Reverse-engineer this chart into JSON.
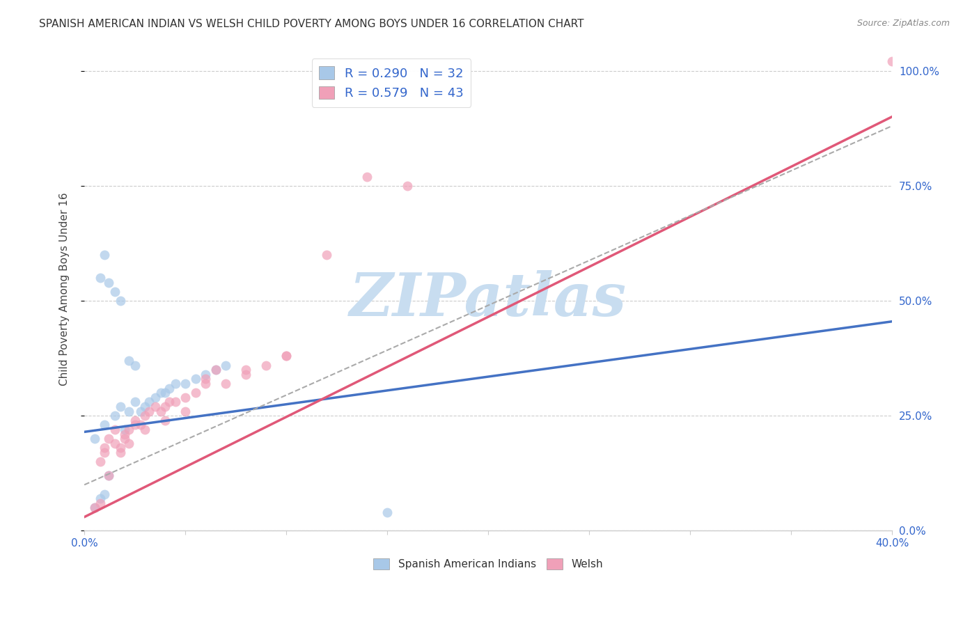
{
  "title": "SPANISH AMERICAN INDIAN VS WELSH CHILD POVERTY AMONG BOYS UNDER 16 CORRELATION CHART",
  "source": "Source: ZipAtlas.com",
  "ylabel": "Child Poverty Among Boys Under 16",
  "legend_entries": [
    {
      "label": "R = 0.290   N = 32",
      "color": "#aec6e8"
    },
    {
      "label": "R = 0.579   N = 43",
      "color": "#f4b8c8"
    }
  ],
  "legend_bottom": [
    "Spanish American Indians",
    "Welsh"
  ],
  "blue_scatter_x": [
    0.005,
    0.01,
    0.015,
    0.018,
    0.02,
    0.022,
    0.025,
    0.028,
    0.03,
    0.032,
    0.035,
    0.038,
    0.04,
    0.042,
    0.045,
    0.05,
    0.055,
    0.06,
    0.065,
    0.07,
    0.008,
    0.012,
    0.015,
    0.018,
    0.022,
    0.025,
    0.005,
    0.008,
    0.01,
    0.012,
    0.15,
    0.01
  ],
  "blue_scatter_y": [
    0.2,
    0.23,
    0.25,
    0.27,
    0.22,
    0.26,
    0.28,
    0.26,
    0.27,
    0.28,
    0.29,
    0.3,
    0.3,
    0.31,
    0.32,
    0.32,
    0.33,
    0.34,
    0.35,
    0.36,
    0.55,
    0.54,
    0.52,
    0.5,
    0.37,
    0.36,
    0.05,
    0.07,
    0.08,
    0.12,
    0.04,
    0.6
  ],
  "pink_scatter_x": [
    0.008,
    0.01,
    0.012,
    0.015,
    0.018,
    0.02,
    0.022,
    0.025,
    0.028,
    0.03,
    0.032,
    0.035,
    0.038,
    0.04,
    0.042,
    0.045,
    0.05,
    0.055,
    0.06,
    0.065,
    0.07,
    0.08,
    0.09,
    0.1,
    0.12,
    0.14,
    0.01,
    0.015,
    0.02,
    0.025,
    0.005,
    0.008,
    0.012,
    0.018,
    0.022,
    0.03,
    0.04,
    0.05,
    0.06,
    0.08,
    0.1,
    0.16,
    0.4
  ],
  "pink_scatter_y": [
    0.15,
    0.18,
    0.2,
    0.22,
    0.18,
    0.2,
    0.22,
    0.24,
    0.23,
    0.25,
    0.26,
    0.27,
    0.26,
    0.27,
    0.28,
    0.28,
    0.29,
    0.3,
    0.33,
    0.35,
    0.32,
    0.34,
    0.36,
    0.38,
    0.6,
    0.77,
    0.17,
    0.19,
    0.21,
    0.23,
    0.05,
    0.06,
    0.12,
    0.17,
    0.19,
    0.22,
    0.24,
    0.26,
    0.32,
    0.35,
    0.38,
    0.75,
    1.02
  ],
  "blue_line_x": [
    0.0,
    0.4
  ],
  "blue_line_y": [
    0.215,
    0.455
  ],
  "pink_line_x": [
    0.0,
    0.4
  ],
  "pink_line_y": [
    0.03,
    0.9
  ],
  "dashed_line_x": [
    0.0,
    0.4
  ],
  "dashed_line_y": [
    0.1,
    0.88
  ],
  "xlim": [
    0.0,
    0.4
  ],
  "ylim": [
    0.0,
    1.05
  ],
  "yticks": [
    0.0,
    0.25,
    0.5,
    0.75,
    1.0
  ],
  "xticks": [
    0.0,
    0.05,
    0.1,
    0.15,
    0.2,
    0.25,
    0.3,
    0.35,
    0.4
  ],
  "xtick_labels": [
    "0.0%",
    "",
    "",
    "",
    "",
    "",
    "",
    "",
    "40.0%"
  ],
  "background_color": "#ffffff",
  "grid_color": "#cccccc",
  "watermark_text": "ZIPatlas",
  "watermark_color": "#c8ddf0",
  "title_fontsize": 11,
  "axis_label_color": "#3366cc",
  "scatter_size": 100,
  "blue_scatter_color": "#a8c8e8",
  "pink_scatter_color": "#f0a0b8",
  "blue_line_color": "#4472c4",
  "pink_line_color": "#e05878",
  "dashed_line_color": "#aaaaaa"
}
